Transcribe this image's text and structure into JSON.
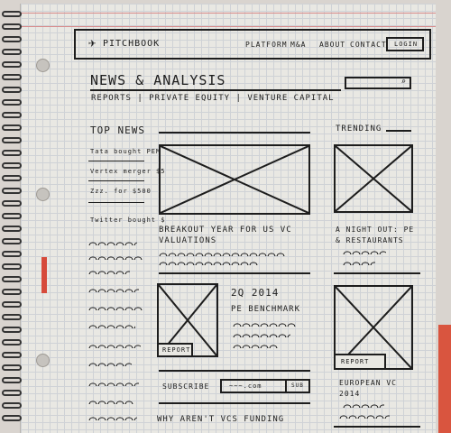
{
  "header": {
    "logo_text": "PITCHBOOK",
    "nav": [
      "PLATFORM",
      "M&A",
      "ABOUT",
      "CONTACT"
    ],
    "login_label": "LOGIN"
  },
  "section": {
    "title": "NEWS & ANALYSIS",
    "subnav": [
      "REPORTS",
      "PRIVATE EQUITY",
      "VENTURE CAPITAL"
    ],
    "separator": "|"
  },
  "top_news": {
    "heading": "TOP NEWS",
    "items": [
      "Tata bought PEM",
      "Vertex merger $5",
      "Zzz. for $500",
      "Twitter bought $"
    ]
  },
  "trending": {
    "heading": "TRENDING"
  },
  "main_article": {
    "title_line1": "BREAKOUT YEAR FOR US VC",
    "title_line2": "VALUATIONS"
  },
  "trending_article_1": {
    "title_line1": "A NIGHT OUT: PE",
    "title_line2": "& RESTAURANTS"
  },
  "benchmark": {
    "title_line1": "2Q 2014",
    "title_line2": "PE BENCHMARK",
    "badge": "REPORT"
  },
  "subscribe": {
    "label": "SUBSCRIBE",
    "input_value": "~~~.com",
    "button_label": "SUB"
  },
  "bottom_article": {
    "title": "WHY AREN'T VCS FUNDING"
  },
  "trending_article_2": {
    "badge": "REPORT",
    "title_line1": "EUROPEAN VC",
    "title_line2": "2014"
  }
}
